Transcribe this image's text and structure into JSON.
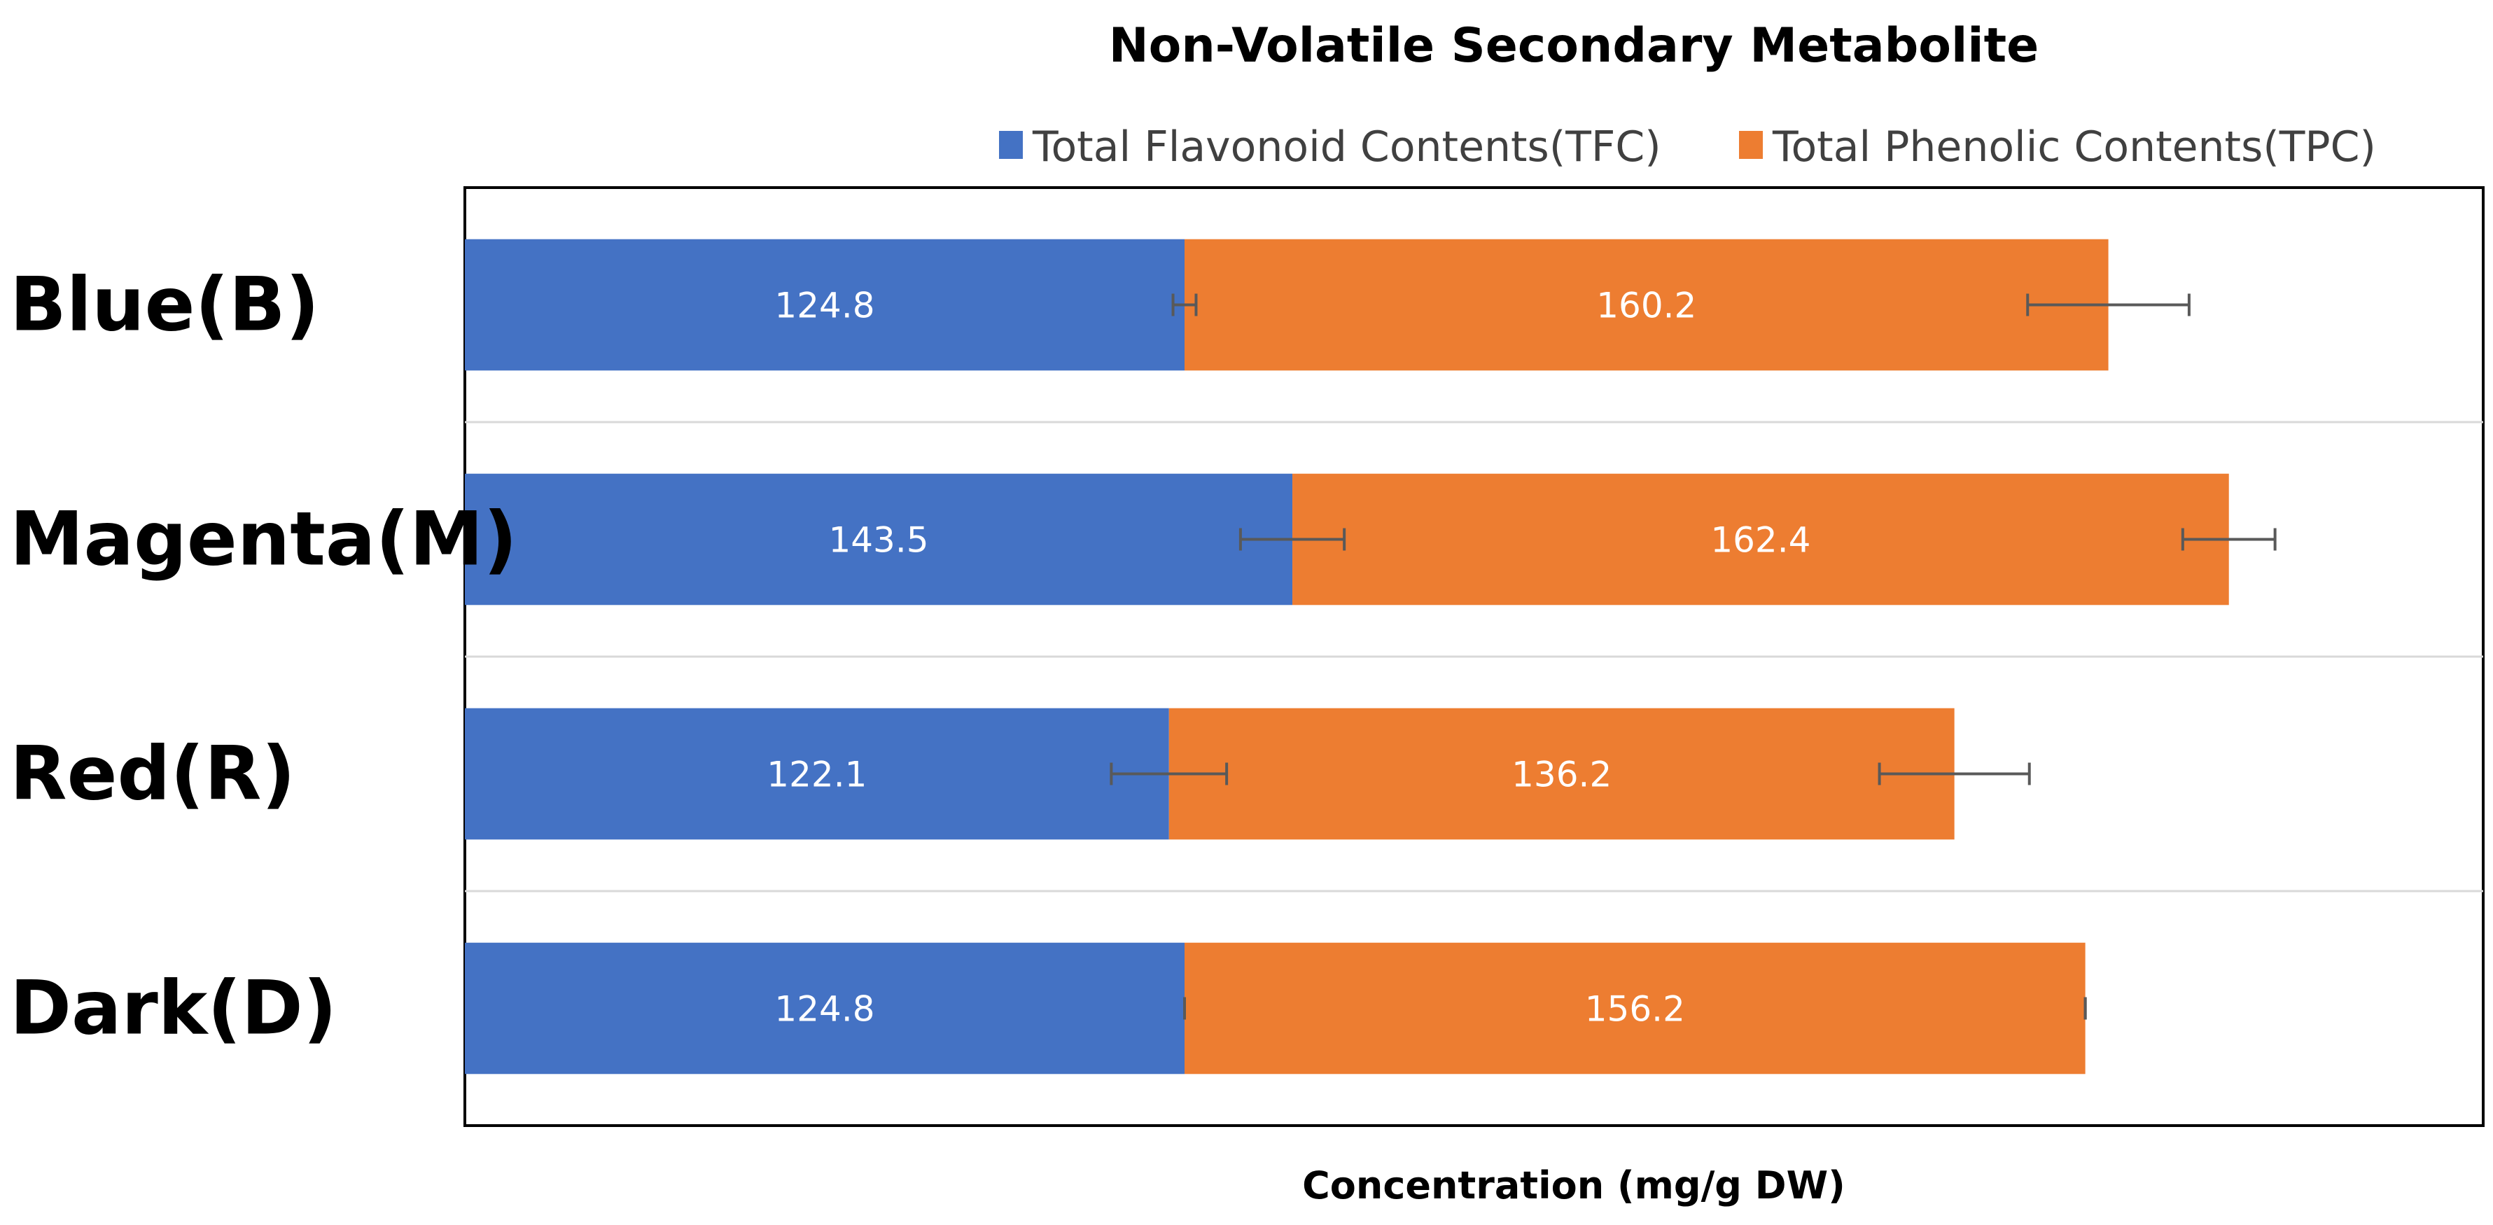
{
  "chart_data": {
    "type": "bar",
    "orientation": "horizontal",
    "stacked": true,
    "title": "Non-Volatile Secondary Metabolite",
    "xlabel": "Concentration (mg/g DW)",
    "ylabel": "",
    "categories": [
      "Blue(B)",
      "Magenta(M)",
      "Red(R)",
      "Dark(D)"
    ],
    "series": [
      {
        "name": "Total Flavonoid Contents(TFC)",
        "color": "#4472C4",
        "values": [
          124.8,
          143.5,
          122.1,
          124.8
        ],
        "error": [
          2,
          9,
          10,
          0
        ]
      },
      {
        "name": "Total Phenolic Contents(TPC)",
        "color": "#ED7D31",
        "values": [
          160.2,
          162.4,
          136.2,
          156.2
        ],
        "error": [
          14,
          8,
          13,
          0
        ]
      }
    ],
    "xlim": [
      0,
      350
    ],
    "grid": "horizontal separators",
    "legend_position": "top",
    "tick_labels_shown": false
  }
}
